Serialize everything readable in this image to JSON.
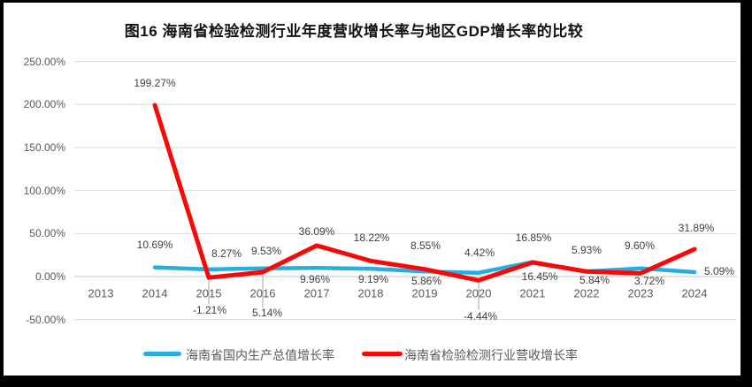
{
  "title": "图16  海南省检验检测行业年度营收增长率与地区GDP增长率的比较",
  "chart_data": {
    "type": "line",
    "title": "图16  海南省检验检测行业年度营收增长率与地区GDP增长率的比较",
    "categories": [
      "2013",
      "2014",
      "2015",
      "2016",
      "2017",
      "2018",
      "2019",
      "2020",
      "2021",
      "2022",
      "2023",
      "2024"
    ],
    "series": [
      {
        "name": "海南省国内生产总值增长率",
        "color": "#29ABE3",
        "values": [
          null,
          10.69,
          8.27,
          9.53,
          9.96,
          9.19,
          5.86,
          4.42,
          16.85,
          5.93,
          9.6,
          5.09
        ]
      },
      {
        "name": "海南省检验检测行业营收增长率",
        "color": "#F90808",
        "values": [
          null,
          199.27,
          -1.21,
          5.14,
          36.09,
          18.22,
          8.55,
          -4.44,
          16.45,
          5.84,
          3.72,
          31.89
        ]
      }
    ],
    "y_axis": {
      "tick_labels": [
        "250.00%",
        "200.00%",
        "150.00%",
        "100.00%",
        "50.00%",
        "0.00%",
        "-50.00%"
      ],
      "tick_values": [
        250,
        200,
        150,
        100,
        50,
        0,
        -50
      ],
      "min": -50,
      "max": 250,
      "format": "percent"
    },
    "x_axis": {
      "label": ""
    },
    "grid": true,
    "legend_position": "bottom",
    "data_labels_visible": true,
    "colors": {
      "gridline": "#D9D9D9",
      "zero_axis": "#C6C6C6",
      "leader_line": "#A6A6A6",
      "tick_text": "#595959",
      "data_label_text": "#3F3F3F"
    }
  }
}
